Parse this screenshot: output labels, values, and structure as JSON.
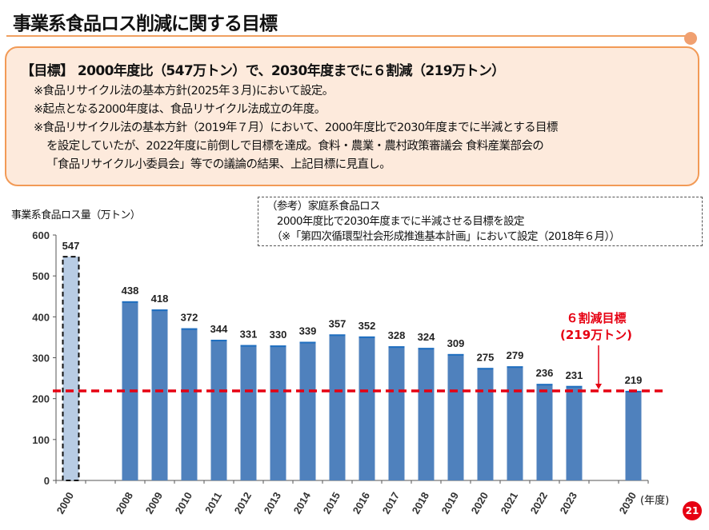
{
  "header": {
    "title": "事業系食品ロス削減に関する目標"
  },
  "goal": {
    "headline": "【目標】 2000年度比（547万トン）で、2030年度までに６割減（219万トン）",
    "notes": [
      "※食品リサイクル法の基本方針(2025年３月)において設定。",
      "※起点となる2000年度は、食品リサイクル法成立の年度。",
      "※食品リサイクル法の基本方針（2019年７月）において、2000年度比で2030年度までに半減とする目標",
      "を設定していたが、2022年度に前倒しで目標を達成。食料・農業・農村政策審議会 食料産業部会の",
      "「食品リサイクル小委員会」等での議論の結果、上記目標に見直し。"
    ]
  },
  "reference": {
    "lines": [
      "（参考）家庭系食品ロス",
      "　2000年度比で2030年度までに半減させる目標を設定",
      "　（※「第四次循環型社会形成推進基本計画」において設定（2018年６月））"
    ]
  },
  "page_number": "21",
  "chart_data": {
    "type": "bar",
    "title": "",
    "ylabel": "事業系食品ロス量（万トン）",
    "xlabel": "(年度)",
    "ylim": [
      0,
      600
    ],
    "yticks": [
      0,
      100,
      200,
      300,
      400,
      500,
      600
    ],
    "categories": [
      "2000",
      "2008",
      "2009",
      "2010",
      "2011",
      "2012",
      "2013",
      "2014",
      "2015",
      "2016",
      "2017",
      "2018",
      "2019",
      "2020",
      "2021",
      "2022",
      "2023",
      "2030"
    ],
    "values": [
      547,
      438,
      418,
      372,
      344,
      331,
      330,
      339,
      357,
      352,
      328,
      324,
      309,
      275,
      279,
      236,
      231,
      219
    ],
    "baseline_category": "2000",
    "target": {
      "value": 219,
      "label_line1": "６割減目標",
      "label_line2": "(219万トン)",
      "color": "#e60012"
    },
    "bar_color": "#4f81bd",
    "baseline_color": "#b8cce4",
    "grid": false
  }
}
